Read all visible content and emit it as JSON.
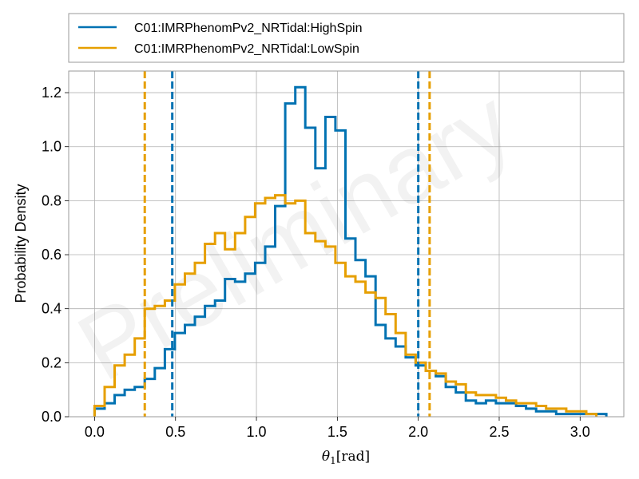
{
  "chart_data": {
    "type": "step-histogram",
    "title": "",
    "xlabel_base": "θ",
    "xlabel_sub": "1",
    "xlabel_unit": "[rad]",
    "ylabel": "Probability Density",
    "xlim": [
      -0.16,
      3.27
    ],
    "ylim": [
      0,
      1.28
    ],
    "xticks": [
      0.0,
      0.5,
      1.0,
      1.5,
      2.0,
      2.5,
      3.0
    ],
    "xtick_labels": [
      "0.0",
      "0.5",
      "1.0",
      "1.5",
      "2.0",
      "2.5",
      "3.0"
    ],
    "yticks": [
      0.0,
      0.2,
      0.4,
      0.6,
      0.8,
      1.0,
      1.2
    ],
    "ytick_labels": [
      "0.0",
      "0.2",
      "0.4",
      "0.6",
      "0.8",
      "1.0",
      "1.2"
    ],
    "grid": true,
    "legend_position": "above-plot",
    "watermark": "Preliminary",
    "bin_width": 0.062,
    "x_start": 0.0,
    "series": [
      {
        "name": "C01:IMRPhenomPv2_NRTidal:HighSpin",
        "color": "#0072B2",
        "values": [
          0.03,
          0.05,
          0.08,
          0.1,
          0.11,
          0.14,
          0.18,
          0.25,
          0.31,
          0.34,
          0.37,
          0.41,
          0.43,
          0.51,
          0.5,
          0.53,
          0.57,
          0.63,
          0.78,
          1.16,
          1.22,
          1.07,
          0.92,
          1.11,
          1.06,
          0.66,
          0.58,
          0.52,
          0.34,
          0.29,
          0.26,
          0.22,
          0.19,
          0.17,
          0.15,
          0.11,
          0.09,
          0.06,
          0.05,
          0.06,
          0.05,
          0.05,
          0.04,
          0.03,
          0.02,
          0.02,
          0.01,
          0.01,
          0.01,
          0.01,
          0.01
        ],
        "interval": [
          0.48,
          2.0
        ]
      },
      {
        "name": "C01:IMRPhenomPv2_NRTidal:LowSpin",
        "color": "#E69F00",
        "values": [
          0.04,
          0.11,
          0.19,
          0.23,
          0.29,
          0.4,
          0.41,
          0.43,
          0.49,
          0.53,
          0.57,
          0.64,
          0.68,
          0.62,
          0.68,
          0.74,
          0.79,
          0.81,
          0.82,
          0.79,
          0.8,
          0.68,
          0.65,
          0.63,
          0.57,
          0.52,
          0.5,
          0.46,
          0.44,
          0.38,
          0.31,
          0.23,
          0.2,
          0.17,
          0.16,
          0.13,
          0.12,
          0.09,
          0.08,
          0.08,
          0.07,
          0.06,
          0.05,
          0.05,
          0.04,
          0.03,
          0.03,
          0.02,
          0.02,
          0.01
        ],
        "interval": [
          0.31,
          2.07
        ]
      }
    ]
  }
}
